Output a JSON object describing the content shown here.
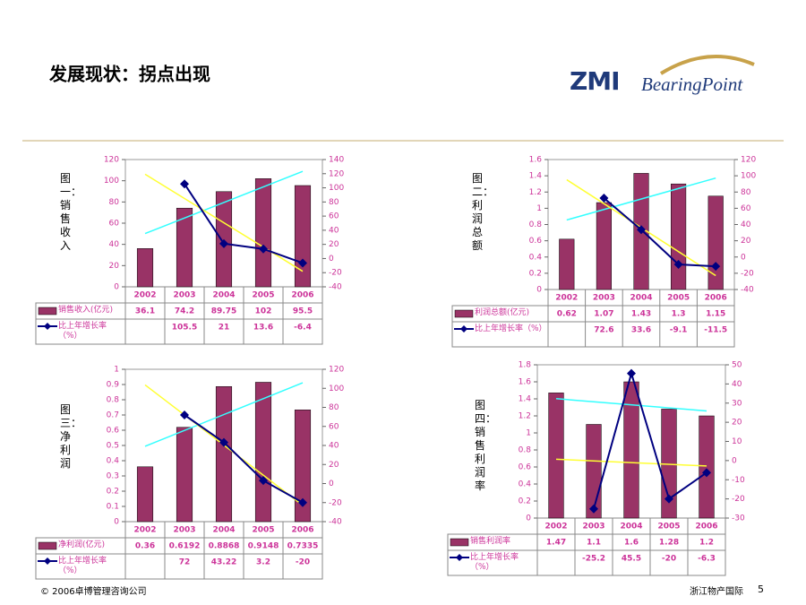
{
  "header": {
    "title": "发展现状：拐点出现",
    "logo_zmi": "ZMI",
    "logo_bp": "BearingPoint"
  },
  "footer": {
    "copyright": "© 2006卓博管理咨询公司",
    "company": "浙江物产国际",
    "page": "5"
  },
  "chart_data": [
    {
      "type": "bar-line",
      "title": "图一：销售收入",
      "categories": [
        "2002",
        "2003",
        "2004",
        "2005",
        "2006"
      ],
      "series": [
        {
          "name": "销售收入(亿元)",
          "type": "bar",
          "color": "#993366",
          "trendline_color": "#33ffff",
          "values": [
            36.1,
            74.2,
            89.75,
            102,
            95.5
          ]
        },
        {
          "name": "比上年增长率（%）",
          "type": "line",
          "axis": "y2",
          "color": "#000080",
          "trendline_color": "#ffff33",
          "values": [
            null,
            105.5,
            21,
            13.6,
            -6.4
          ]
        }
      ],
      "ylim": [
        0,
        120
      ],
      "yticks": [
        0,
        20,
        40,
        60,
        80,
        100,
        120
      ],
      "y2lim": [
        -40,
        140
      ],
      "y2ticks": [
        -40,
        -20,
        0,
        20,
        40,
        60,
        80,
        100,
        120,
        140
      ]
    },
    {
      "type": "bar-line",
      "title": "图二：利润总额",
      "categories": [
        "2002",
        "2003",
        "2004",
        "2005",
        "2006"
      ],
      "series": [
        {
          "name": "利润总额(亿元)",
          "type": "bar",
          "color": "#993366",
          "trendline_color": "#33ffff",
          "values": [
            0.62,
            1.07,
            1.43,
            1.3,
            1.15
          ]
        },
        {
          "name": "比上年增长率（%）",
          "type": "line",
          "axis": "y2",
          "color": "#000080",
          "trendline_color": "#ffff33",
          "values": [
            null,
            72.6,
            33.6,
            -9.1,
            -11.5
          ]
        }
      ],
      "ylim": [
        0,
        1.6
      ],
      "yticks": [
        0,
        0.2,
        0.4,
        0.6,
        0.8,
        1,
        1.2,
        1.4,
        1.6
      ],
      "y2lim": [
        -40,
        120
      ],
      "y2ticks": [
        -40,
        -20,
        0,
        20,
        40,
        60,
        80,
        100,
        120
      ]
    },
    {
      "type": "bar-line",
      "title": "图三：净利润",
      "categories": [
        "2002",
        "2003",
        "2004",
        "2005",
        "2006"
      ],
      "series": [
        {
          "name": "净利润(亿元)",
          "type": "bar",
          "color": "#993366",
          "trendline_color": "#33ffff",
          "values": [
            0.36,
            0.6192,
            0.8868,
            0.9148,
            0.7335
          ]
        },
        {
          "name": "比上年增长率（%）",
          "type": "line",
          "axis": "y2",
          "color": "#000080",
          "trendline_color": "#ffff33",
          "values": [
            null,
            72,
            43.22,
            3.2,
            -20
          ]
        }
      ],
      "ylim": [
        0,
        1
      ],
      "yticks": [
        0,
        0.1,
        0.2,
        0.3,
        0.4,
        0.5,
        0.6,
        0.7,
        0.8,
        0.9,
        1
      ],
      "y2lim": [
        -40,
        120
      ],
      "y2ticks": [
        -40,
        -20,
        0,
        20,
        40,
        60,
        80,
        100,
        120
      ]
    },
    {
      "type": "bar-line",
      "title": "图四：销售利润率",
      "categories": [
        "2002",
        "2003",
        "2004",
        "2005",
        "2006"
      ],
      "series": [
        {
          "name": "销售利润率",
          "type": "bar",
          "color": "#993366",
          "trendline_color": "#33ffff",
          "values": [
            1.47,
            1.1,
            1.6,
            1.28,
            1.2
          ]
        },
        {
          "name": "比上年增长率（%）",
          "type": "line",
          "axis": "y2",
          "color": "#000080",
          "trendline_color": "#ffff33",
          "values": [
            null,
            -25.2,
            45.5,
            -20,
            -6.3
          ]
        }
      ],
      "ylim": [
        0,
        1.8
      ],
      "yticks": [
        0,
        0.2,
        0.4,
        0.6,
        0.8,
        1,
        1.2,
        1.4,
        1.6,
        1.8
      ],
      "y2lim": [
        -30,
        50
      ],
      "y2ticks": [
        -30,
        -20,
        -10,
        0,
        10,
        20,
        30,
        40,
        50
      ]
    }
  ]
}
